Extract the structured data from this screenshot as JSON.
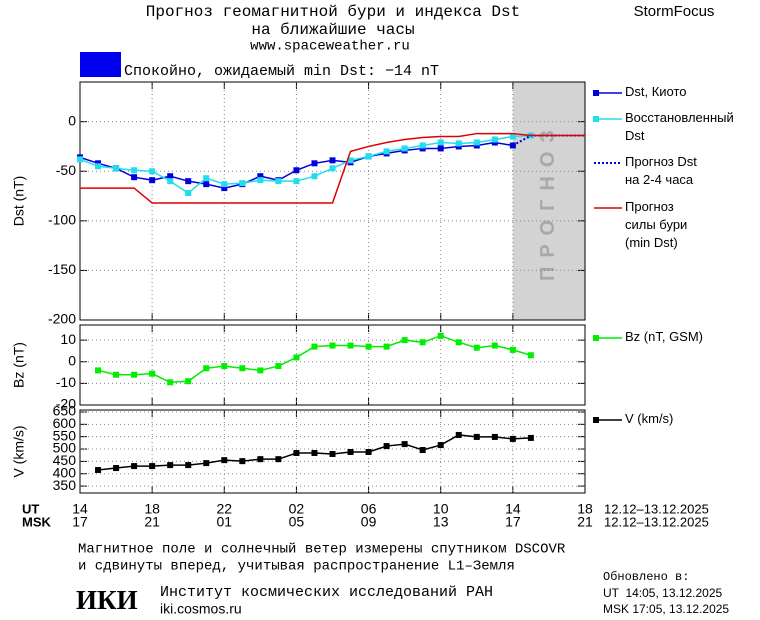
{
  "header": {
    "title_lines": [
      "Прогноз геомагнитной бури и индекса Dst",
      "на ближайшие часы"
    ],
    "site": "www.spaceweather.ru",
    "brand": "StormFocus"
  },
  "status": {
    "text": "Спокойно, ожидаемый min Dst: −14 nT",
    "color": "#0000ee"
  },
  "x_axis": {
    "xlim": [
      14,
      42
    ],
    "rows": [
      {
        "name": "UT",
        "dates": "12.12–13.12.2025",
        "ticks": [
          {
            "value": 14,
            "label": "14"
          },
          {
            "value": 18,
            "label": "18"
          },
          {
            "value": 22,
            "label": "22"
          },
          {
            "value": 26,
            "label": "02"
          },
          {
            "value": 30,
            "label": "06"
          },
          {
            "value": 34,
            "label": "10"
          },
          {
            "value": 38,
            "label": "14"
          },
          {
            "value": 42,
            "label": "18"
          }
        ]
      },
      {
        "name": "MSK",
        "dates": "12.12–13.12.2025",
        "ticks": [
          {
            "value": 14,
            "label": "17"
          },
          {
            "value": 18,
            "label": "21"
          },
          {
            "value": 22,
            "label": "01"
          },
          {
            "value": 26,
            "label": "05"
          },
          {
            "value": 30,
            "label": "09"
          },
          {
            "value": 34,
            "label": "13"
          },
          {
            "value": 38,
            "label": "17"
          },
          {
            "value": 42,
            "label": "21"
          }
        ]
      }
    ]
  },
  "chart_data": [
    {
      "type": "line",
      "ylabel": "Dst (nT)",
      "ylim": [
        -200,
        40
      ],
      "yticks": [
        0,
        -50,
        -100,
        -150,
        -200
      ],
      "grid": true,
      "forecast_region": {
        "x": [
          38,
          42
        ],
        "label": "ПРОГНОЗ",
        "color": "#d3d3d3"
      },
      "series": [
        {
          "name": "Dst, Киото",
          "color": "#0000dd",
          "marker": true,
          "style": "solid",
          "x": [
            14,
            15,
            16,
            17,
            18,
            19,
            20,
            21,
            22,
            23,
            24,
            25,
            26,
            27,
            28,
            29,
            30,
            31,
            32,
            33,
            34,
            35,
            36,
            37,
            38
          ],
          "values": [
            -36,
            -42,
            -47,
            -56,
            -59,
            -55,
            -60,
            -63,
            -67,
            -63,
            -55,
            -59,
            -49,
            -42,
            -39,
            -41,
            -35,
            -32,
            -29,
            -27,
            -27,
            -25,
            -24,
            -21,
            -24
          ]
        },
        {
          "name": "Восстановленный\nDst",
          "color": "#22ddee",
          "marker": true,
          "style": "solid",
          "x": [
            14,
            15,
            16,
            17,
            18,
            19,
            20,
            21,
            22,
            23,
            24,
            25,
            26,
            27,
            28,
            29,
            30,
            31,
            32,
            33,
            34,
            35,
            36,
            37,
            38,
            39
          ],
          "values": [
            -38,
            -45,
            -47,
            -49,
            -50,
            -60,
            -72,
            -57,
            -63,
            -62,
            -59,
            -60,
            -60,
            -55,
            -47,
            -39,
            -35,
            -30,
            -27,
            -24,
            -21,
            -22,
            -21,
            -18,
            -15,
            -14
          ]
        },
        {
          "name": "Прогноз Dst\nна 2-4 часа",
          "color": "#0000dd",
          "marker": false,
          "style": "dotted",
          "x": [
            38,
            39,
            42
          ],
          "values": [
            -24,
            -14,
            -14
          ]
        },
        {
          "name": "Прогноз\nсилы бури\n(min Dst)",
          "color": "#e00000",
          "marker": false,
          "style": "solid",
          "x": [
            14,
            17,
            18,
            28,
            29,
            30,
            31,
            32,
            33,
            34,
            35,
            36,
            37,
            38,
            39,
            42
          ],
          "values": [
            -67,
            -67,
            -82,
            -82,
            -30,
            -25,
            -21,
            -18,
            -16,
            -15,
            -15,
            -12,
            -12,
            -12,
            -14,
            -14
          ]
        }
      ]
    },
    {
      "type": "line",
      "ylabel": "Bz (nT)",
      "ylim": [
        -20,
        17
      ],
      "yticks": [
        10,
        0,
        -10,
        -20
      ],
      "grid": true,
      "series": [
        {
          "name": "Bz (nT, GSM)",
          "color": "#00ee00",
          "marker": true,
          "style": "solid",
          "x": [
            15,
            16,
            17,
            18,
            19,
            20,
            21,
            22,
            23,
            24,
            25,
            26,
            27,
            28,
            29,
            30,
            31,
            32,
            33,
            34,
            35,
            36,
            37,
            38,
            39
          ],
          "values": [
            -4,
            -6,
            -6,
            -5.5,
            -9.5,
            -9,
            -3,
            -2,
            -3,
            -4,
            -2,
            2,
            7,
            7.5,
            7.5,
            7,
            7,
            10,
            9,
            12,
            9,
            6.5,
            7.5,
            5.5,
            3
          ]
        }
      ]
    },
    {
      "type": "line",
      "ylabel": "V (km/s)",
      "ylim": [
        322,
        658
      ],
      "yticks": [
        650,
        600,
        550,
        500,
        450,
        400,
        350
      ],
      "grid": true,
      "series": [
        {
          "name": "V (km/s)",
          "color": "#000000",
          "marker": true,
          "style": "solid",
          "x": [
            15,
            16,
            17,
            18,
            19,
            20,
            21,
            22,
            23,
            24,
            25,
            26,
            27,
            28,
            29,
            30,
            31,
            32,
            33,
            34,
            35,
            36,
            37,
            38,
            39
          ],
          "values": [
            415,
            423,
            431,
            431,
            435,
            435,
            443,
            455,
            451,
            459,
            459,
            484,
            484,
            480,
            488,
            488,
            512,
            520,
            496,
            516,
            557,
            549,
            549,
            541,
            545
          ]
        }
      ]
    }
  ],
  "footer": {
    "note_lines": [
      "Магнитное поле и солнечный ветер измерены спутником DSCOVR",
      "и сдвинуты вперед, учитывая распространение L1–Земля"
    ],
    "logo": "ИКИ",
    "institute": "Институт космических исследований РАН",
    "institute_site": "iki.cosmos.ru",
    "updated_label": "Обновлено в:",
    "updated_lines": [
      "UT  14:05, 13.12.2025",
      "MSK 17:05, 13.12.2025"
    ]
  }
}
